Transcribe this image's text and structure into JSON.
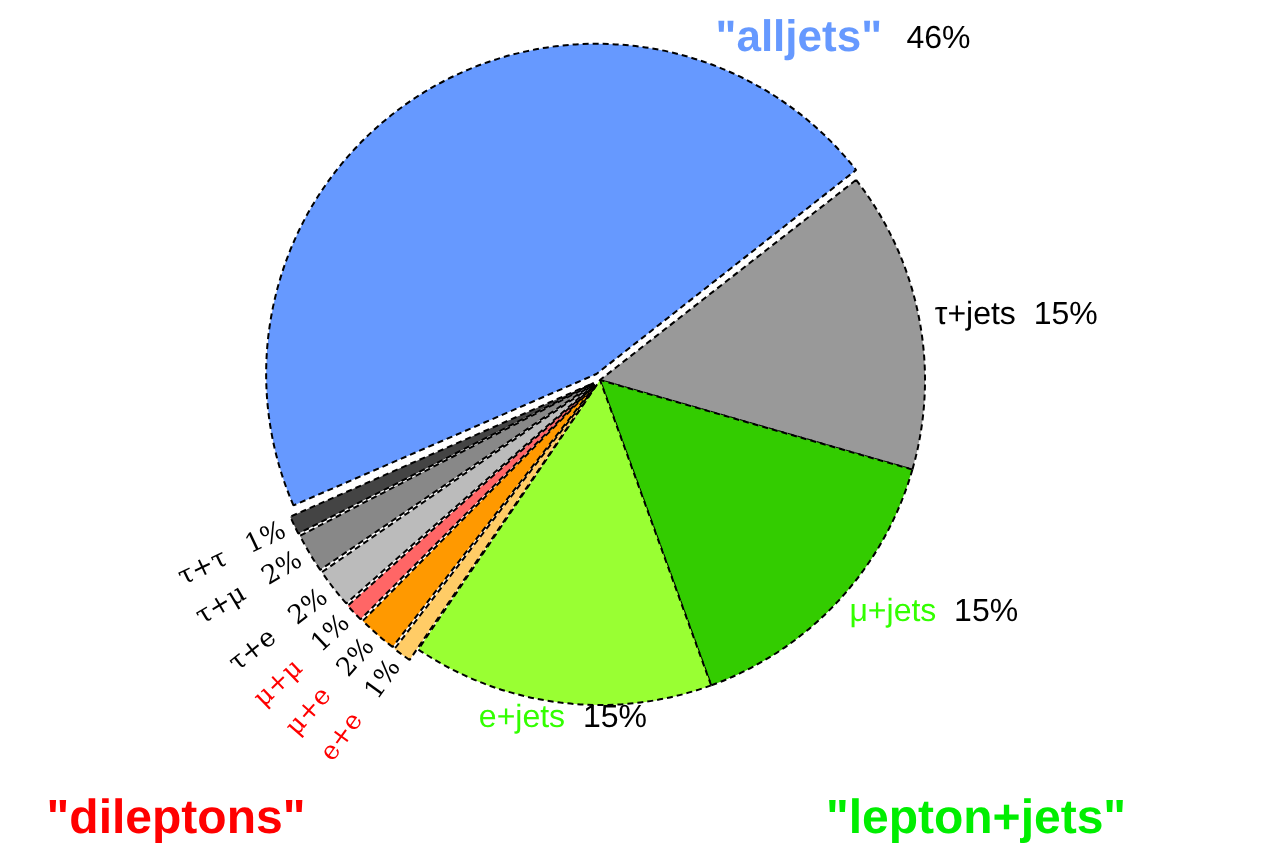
{
  "chart_data": {
    "type": "pie",
    "categories": [
      "\"alljets\"",
      "τ+jets",
      "μ+jets",
      "e+jets",
      "e+e",
      "μ+e",
      "μ+μ",
      "τ+e",
      "τ+μ",
      "τ+τ"
    ],
    "values": [
      46,
      15,
      15,
      15,
      1,
      2,
      1,
      2,
      2,
      1
    ],
    "colors": [
      "#6699ff",
      "#999999",
      "#33cc00",
      "#99ff33",
      "#ffcc66",
      "#ff9900",
      "#ff6666",
      "#bbbbbb",
      "#888888",
      "#444444"
    ],
    "value_labels": [
      "46%",
      "15%",
      "15%",
      "15%",
      "1%",
      "2%",
      "1%",
      "2%",
      "2%",
      "1%"
    ],
    "legend": false,
    "annotations": [
      "\"dileptons\"",
      "\"lepton+jets\""
    ]
  }
}
